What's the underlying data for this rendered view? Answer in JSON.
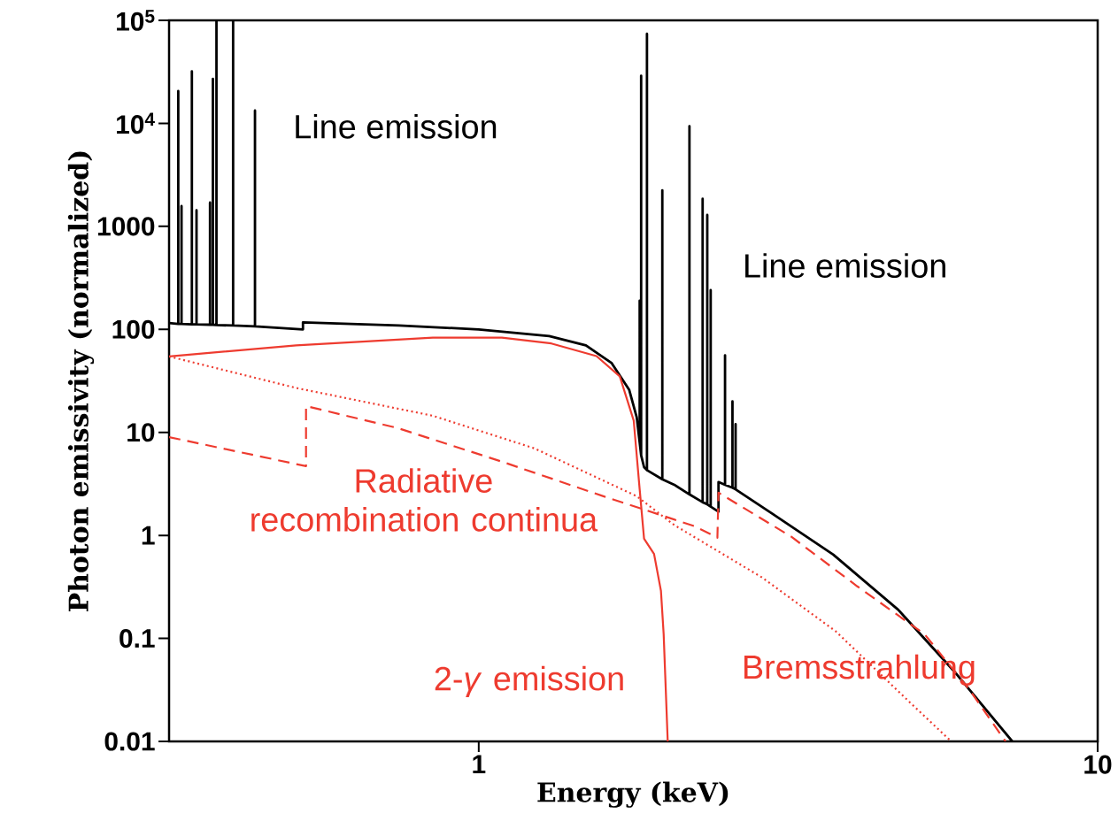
{
  "chart_data": {
    "type": "line",
    "xlabel": "Energy (keV)",
    "ylabel": "Photon emissivity (normalized)",
    "log": "xy",
    "xlim": [
      0.316,
      10
    ],
    "ylim": [
      0.01,
      100000
    ],
    "xticks": [
      1,
      10
    ],
    "yticks": [
      0.01,
      0.1,
      1,
      10,
      100,
      1000,
      {
        "value": 10000,
        "label": "10$^{4}$"
      },
      {
        "value": 100000,
        "label": "10$^{5}$"
      }
    ],
    "marker": "none",
    "annotations": [
      "Line emission",
      "Line emission"
    ],
    "series": [
      {
        "color": "#000000",
        "line_style": "solid",
        "x": [
          0.316,
          0.327,
          0.327,
          0.327,
          0.331,
          0.331,
          0.331,
          0.344,
          0.344,
          0.344,
          0.35,
          0.35,
          0.35,
          0.368,
          0.368,
          0.368,
          0.372,
          0.372,
          0.372,
          0.377,
          0.377,
          0.377,
          0.401,
          0.401,
          0.401,
          0.435,
          0.435,
          0.435,
          0.52,
          0.52,
          0.743,
          1,
          1.3,
          1.49,
          1.64,
          1.75,
          1.8,
          1.82,
          1.82,
          1.82,
          1.83,
          1.83,
          1.83,
          1.85,
          1.87,
          1.87,
          1.87,
          1.98,
          1.98,
          1.98,
          2.07,
          2.19,
          2.19,
          2.19,
          2.3,
          2.3,
          2.3,
          2.34,
          2.34,
          2.34,
          2.37,
          2.37,
          2.37,
          2.44,
          2.44,
          2.5,
          2.5,
          2.5,
          2.57,
          2.57,
          2.57,
          2.6,
          2.6,
          2.6,
          2.97,
          3.74,
          4.76,
          5.88,
          7.28
        ],
        "values": [
          115,
          113,
          20600,
          113,
          113,
          1575,
          113,
          112,
          32000,
          112,
          112,
          1430,
          112,
          111,
          1700,
          111,
          111,
          27000,
          111,
          110,
          100000,
          110,
          109,
          100000,
          109,
          107,
          13300,
          107,
          100,
          117,
          109,
          100,
          86,
          70,
          47,
          26,
          14,
          8,
          190,
          8,
          6,
          29000,
          6,
          4.6,
          4.3,
          74000,
          4.3,
          3.5,
          2240,
          3.5,
          3.1,
          2.5,
          9400,
          2.5,
          2.1,
          1850,
          2.1,
          2.0,
          1290,
          2.0,
          1.9,
          240,
          1.9,
          1.7,
          3.3,
          3.1,
          56,
          3.1,
          2.9,
          20,
          2.9,
          2.8,
          12,
          2.8,
          1.65,
          0.65,
          0.19,
          0.047,
          0.01
        ]
      },
      {
        "name": "2-*γ* emission",
        "color": "#ee3b2f",
        "line_style": "solid",
        "x": [
          0.316,
          0.507,
          0.843,
          1.09,
          1.31,
          1.55,
          1.69,
          1.78,
          1.82,
          1.85,
          1.92,
          1.97,
          1.99,
          2.02
        ],
        "values": [
          54.6,
          70,
          83,
          83,
          73,
          55,
          35,
          13,
          2.8,
          0.93,
          0.66,
          0.29,
          0.11,
          0.01
        ]
      },
      {
        "name": "Radiative recombination continua",
        "color": "#ee3b2f",
        "line_style": "dashed",
        "x": [
          0.316,
          0.526,
          0.526,
          0.74,
          1.09,
          1.59,
          2.23,
          2.43,
          2.44,
          3.2,
          4.09,
          5.25,
          6.2,
          7.1
        ],
        "values": [
          9.0,
          4.7,
          18,
          11,
          5.2,
          2.4,
          1.23,
          0.95,
          2.6,
          0.97,
          0.32,
          0.11,
          0.032,
          0.01
        ]
      },
      {
        "name": "Bremsstrahlung",
        "color": "#ee3b2f",
        "line_style": "dotted",
        "x": [
          0.316,
          0.507,
          0.843,
          1.23,
          1.8,
          2.07,
          2.87,
          3.77,
          4.97,
          5.8
        ],
        "values": [
          54.6,
          27,
          14.5,
          7,
          2.4,
          1.26,
          0.39,
          0.118,
          0.024,
          0.01
        ]
      }
    ]
  }
}
